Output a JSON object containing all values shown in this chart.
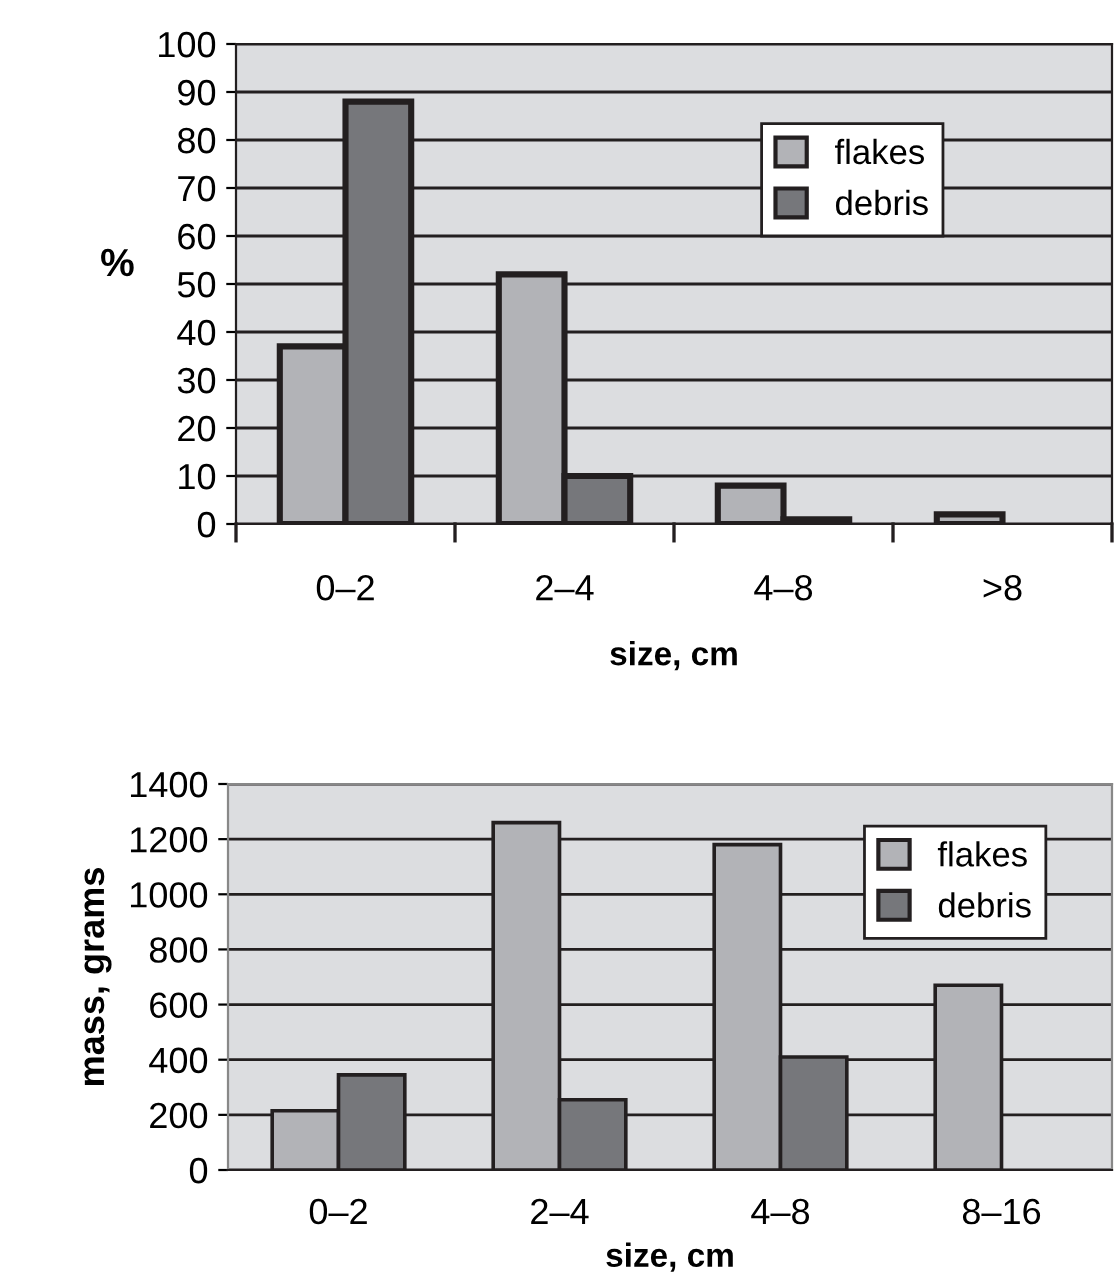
{
  "chart_data": [
    {
      "type": "bar",
      "xlabel": "size, cm",
      "ylabel": "%",
      "categories": [
        "0–2",
        "2–4",
        "4–8",
        ">8"
      ],
      "series": [
        {
          "name": "flakes",
          "color": "#b2b3b7",
          "values": [
            37,
            52,
            8,
            2
          ]
        },
        {
          "name": "debris",
          "color": "#76777b",
          "values": [
            88,
            10,
            1,
            null
          ]
        }
      ],
      "ylim": [
        0,
        100
      ],
      "yticks": [
        0,
        10,
        20,
        30,
        40,
        50,
        60,
        70,
        80,
        90,
        100
      ],
      "grid": "y",
      "legend": "top right"
    },
    {
      "type": "bar",
      "xlabel": "size, cm",
      "ylabel": "mass, grams",
      "categories": [
        "0–2",
        "2–4",
        "4–8",
        "8–16"
      ],
      "series": [
        {
          "name": "flakes",
          "color": "#b2b3b7",
          "values": [
            215,
            1260,
            1180,
            670
          ]
        },
        {
          "name": "debris",
          "color": "#76777b",
          "values": [
            345,
            255,
            410,
            null
          ]
        }
      ],
      "ylim": [
        0,
        1400
      ],
      "yticks": [
        0,
        200,
        400,
        600,
        800,
        1000,
        1200,
        1400
      ],
      "grid": "y",
      "legend": "top right"
    }
  ]
}
